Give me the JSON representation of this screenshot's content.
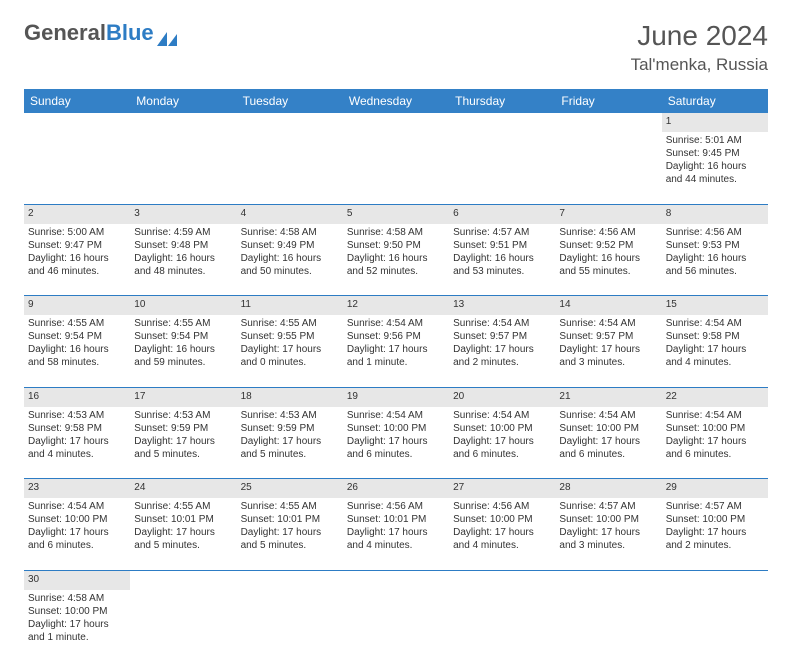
{
  "logo": {
    "text1": "General",
    "text2": "Blue"
  },
  "title": "June 2024",
  "location": "Tal'menka, Russia",
  "columns": [
    "Sunday",
    "Monday",
    "Tuesday",
    "Wednesday",
    "Thursday",
    "Friday",
    "Saturday"
  ],
  "colors": {
    "header_bg": "#3481c7",
    "header_text": "#ffffff",
    "daynum_bg": "#e7e7e7",
    "border": "#2d7cc4",
    "text": "#333333"
  },
  "weeks": [
    [
      null,
      null,
      null,
      null,
      null,
      null,
      {
        "n": "1",
        "sr": "Sunrise: 5:01 AM",
        "ss": "Sunset: 9:45 PM",
        "dl": "Daylight: 16 hours and 44 minutes."
      }
    ],
    [
      {
        "n": "2",
        "sr": "Sunrise: 5:00 AM",
        "ss": "Sunset: 9:47 PM",
        "dl": "Daylight: 16 hours and 46 minutes."
      },
      {
        "n": "3",
        "sr": "Sunrise: 4:59 AM",
        "ss": "Sunset: 9:48 PM",
        "dl": "Daylight: 16 hours and 48 minutes."
      },
      {
        "n": "4",
        "sr": "Sunrise: 4:58 AM",
        "ss": "Sunset: 9:49 PM",
        "dl": "Daylight: 16 hours and 50 minutes."
      },
      {
        "n": "5",
        "sr": "Sunrise: 4:58 AM",
        "ss": "Sunset: 9:50 PM",
        "dl": "Daylight: 16 hours and 52 minutes."
      },
      {
        "n": "6",
        "sr": "Sunrise: 4:57 AM",
        "ss": "Sunset: 9:51 PM",
        "dl": "Daylight: 16 hours and 53 minutes."
      },
      {
        "n": "7",
        "sr": "Sunrise: 4:56 AM",
        "ss": "Sunset: 9:52 PM",
        "dl": "Daylight: 16 hours and 55 minutes."
      },
      {
        "n": "8",
        "sr": "Sunrise: 4:56 AM",
        "ss": "Sunset: 9:53 PM",
        "dl": "Daylight: 16 hours and 56 minutes."
      }
    ],
    [
      {
        "n": "9",
        "sr": "Sunrise: 4:55 AM",
        "ss": "Sunset: 9:54 PM",
        "dl": "Daylight: 16 hours and 58 minutes."
      },
      {
        "n": "10",
        "sr": "Sunrise: 4:55 AM",
        "ss": "Sunset: 9:54 PM",
        "dl": "Daylight: 16 hours and 59 minutes."
      },
      {
        "n": "11",
        "sr": "Sunrise: 4:55 AM",
        "ss": "Sunset: 9:55 PM",
        "dl": "Daylight: 17 hours and 0 minutes."
      },
      {
        "n": "12",
        "sr": "Sunrise: 4:54 AM",
        "ss": "Sunset: 9:56 PM",
        "dl": "Daylight: 17 hours and 1 minute."
      },
      {
        "n": "13",
        "sr": "Sunrise: 4:54 AM",
        "ss": "Sunset: 9:57 PM",
        "dl": "Daylight: 17 hours and 2 minutes."
      },
      {
        "n": "14",
        "sr": "Sunrise: 4:54 AM",
        "ss": "Sunset: 9:57 PM",
        "dl": "Daylight: 17 hours and 3 minutes."
      },
      {
        "n": "15",
        "sr": "Sunrise: 4:54 AM",
        "ss": "Sunset: 9:58 PM",
        "dl": "Daylight: 17 hours and 4 minutes."
      }
    ],
    [
      {
        "n": "16",
        "sr": "Sunrise: 4:53 AM",
        "ss": "Sunset: 9:58 PM",
        "dl": "Daylight: 17 hours and 4 minutes."
      },
      {
        "n": "17",
        "sr": "Sunrise: 4:53 AM",
        "ss": "Sunset: 9:59 PM",
        "dl": "Daylight: 17 hours and 5 minutes."
      },
      {
        "n": "18",
        "sr": "Sunrise: 4:53 AM",
        "ss": "Sunset: 9:59 PM",
        "dl": "Daylight: 17 hours and 5 minutes."
      },
      {
        "n": "19",
        "sr": "Sunrise: 4:54 AM",
        "ss": "Sunset: 10:00 PM",
        "dl": "Daylight: 17 hours and 6 minutes."
      },
      {
        "n": "20",
        "sr": "Sunrise: 4:54 AM",
        "ss": "Sunset: 10:00 PM",
        "dl": "Daylight: 17 hours and 6 minutes."
      },
      {
        "n": "21",
        "sr": "Sunrise: 4:54 AM",
        "ss": "Sunset: 10:00 PM",
        "dl": "Daylight: 17 hours and 6 minutes."
      },
      {
        "n": "22",
        "sr": "Sunrise: 4:54 AM",
        "ss": "Sunset: 10:00 PM",
        "dl": "Daylight: 17 hours and 6 minutes."
      }
    ],
    [
      {
        "n": "23",
        "sr": "Sunrise: 4:54 AM",
        "ss": "Sunset: 10:00 PM",
        "dl": "Daylight: 17 hours and 6 minutes."
      },
      {
        "n": "24",
        "sr": "Sunrise: 4:55 AM",
        "ss": "Sunset: 10:01 PM",
        "dl": "Daylight: 17 hours and 5 minutes."
      },
      {
        "n": "25",
        "sr": "Sunrise: 4:55 AM",
        "ss": "Sunset: 10:01 PM",
        "dl": "Daylight: 17 hours and 5 minutes."
      },
      {
        "n": "26",
        "sr": "Sunrise: 4:56 AM",
        "ss": "Sunset: 10:01 PM",
        "dl": "Daylight: 17 hours and 4 minutes."
      },
      {
        "n": "27",
        "sr": "Sunrise: 4:56 AM",
        "ss": "Sunset: 10:00 PM",
        "dl": "Daylight: 17 hours and 4 minutes."
      },
      {
        "n": "28",
        "sr": "Sunrise: 4:57 AM",
        "ss": "Sunset: 10:00 PM",
        "dl": "Daylight: 17 hours and 3 minutes."
      },
      {
        "n": "29",
        "sr": "Sunrise: 4:57 AM",
        "ss": "Sunset: 10:00 PM",
        "dl": "Daylight: 17 hours and 2 minutes."
      }
    ],
    [
      {
        "n": "30",
        "sr": "Sunrise: 4:58 AM",
        "ss": "Sunset: 10:00 PM",
        "dl": "Daylight: 17 hours and 1 minute."
      },
      null,
      null,
      null,
      null,
      null,
      null
    ]
  ]
}
